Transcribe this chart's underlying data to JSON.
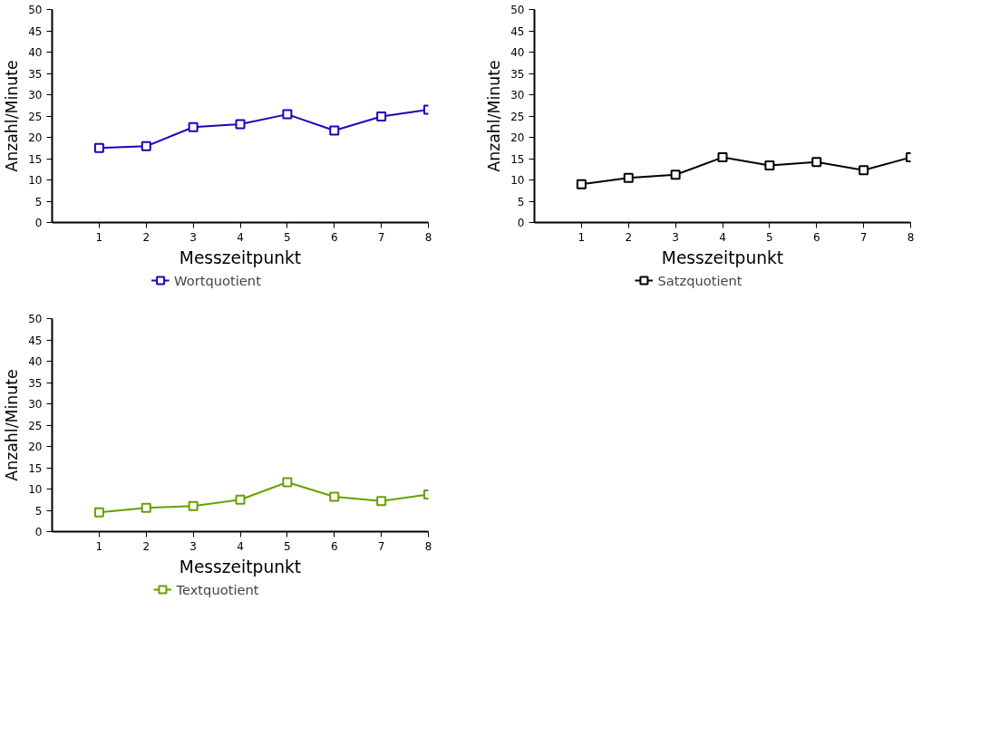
{
  "chart_data": [
    {
      "type": "line",
      "x": [
        1,
        2,
        3,
        4,
        5,
        6,
        7,
        8
      ],
      "xlabel": "Messzeitpunkt",
      "ylabel": "Anzahl/Minute",
      "xlim": [
        0,
        8
      ],
      "xticks": [
        1,
        2,
        3,
        4,
        5,
        6,
        7,
        8
      ],
      "ylim": [
        0,
        50
      ],
      "yticks": [
        0,
        5,
        10,
        15,
        20,
        25,
        30,
        35,
        40,
        45,
        50
      ],
      "grid": false,
      "legend": "bottom",
      "marker": "square",
      "line_style": "solid",
      "series": [
        {
          "name": "Wortquotient",
          "color": "#2200bb",
          "values": [
            17.5,
            17.9,
            22.4,
            23.1,
            25.4,
            21.6,
            24.9,
            26.5
          ]
        }
      ]
    },
    {
      "type": "line",
      "x": [
        1,
        2,
        3,
        4,
        5,
        6,
        7,
        8
      ],
      "xlabel": "Messzeitpunkt",
      "ylabel": "Anzahl/Minute",
      "xlim": [
        0,
        8
      ],
      "xticks": [
        1,
        2,
        3,
        4,
        5,
        6,
        7,
        8
      ],
      "ylim": [
        0,
        50
      ],
      "yticks": [
        0,
        5,
        10,
        15,
        20,
        25,
        30,
        35,
        40,
        45,
        50
      ],
      "grid": false,
      "legend": "bottom",
      "marker": "square",
      "line_style": "solid",
      "series": [
        {
          "name": "Satzquotient",
          "color": "#000000",
          "values": [
            9.0,
            10.5,
            11.2,
            15.3,
            13.4,
            14.2,
            12.3,
            15.3
          ]
        }
      ]
    },
    {
      "type": "line",
      "x": [
        1,
        2,
        3,
        4,
        5,
        6,
        7,
        8
      ],
      "xlabel": "Messzeitpunkt",
      "ylabel": "Anzahl/Minute",
      "xlim": [
        0,
        8
      ],
      "xticks": [
        1,
        2,
        3,
        4,
        5,
        6,
        7,
        8
      ],
      "ylim": [
        0,
        50
      ],
      "yticks": [
        0,
        5,
        10,
        15,
        20,
        25,
        30,
        35,
        40,
        45,
        50
      ],
      "grid": false,
      "legend": "bottom",
      "marker": "square",
      "line_style": "solid",
      "series": [
        {
          "name": "Textquotient",
          "color": "#66a000",
          "values": [
            4.5,
            5.6,
            6.0,
            7.5,
            11.6,
            8.2,
            7.2,
            8.7
          ]
        }
      ]
    }
  ]
}
